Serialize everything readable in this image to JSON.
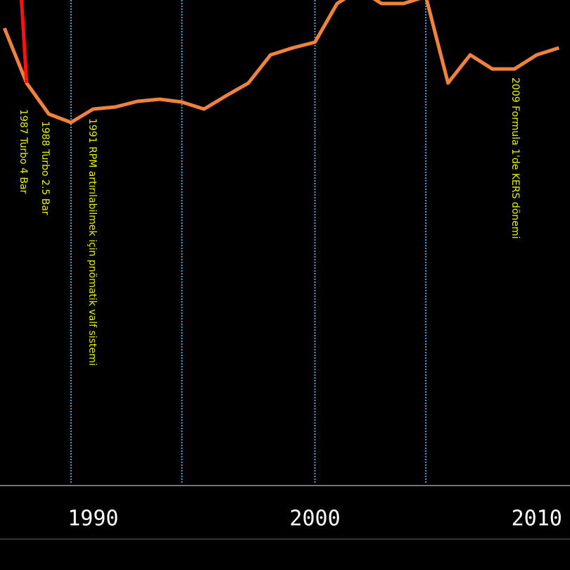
{
  "chart_data": {
    "type": "line",
    "x": [
      1986,
      1987,
      1988,
      1989,
      1990,
      1991,
      1992,
      1993,
      1994,
      1995,
      1996,
      1997,
      1998,
      1999,
      2000,
      2001,
      2002,
      2003,
      2004,
      2005,
      2006,
      2007,
      2008,
      2009,
      2010,
      2011
    ],
    "series": [
      {
        "color": "#f0823c",
        "values": [
          650,
          572,
          528,
          516,
          535,
          538,
          546,
          549,
          545,
          535,
          554,
          572,
          612,
          622,
          630,
          685,
          705,
          685,
          685,
          695,
          572,
          612,
          592,
          592,
          612,
          622
        ]
      },
      {
        "color": "#ff1010",
        "x": [
          1986.75,
          1987
        ],
        "values": [
          700,
          572
        ]
      }
    ],
    "reference_lines": [
      1989,
      1994,
      2000,
      2005
    ],
    "annotations": [
      "1987 Turbo 4 Bar",
      "1988 Turbo 2.5 Bar",
      "1991 RPM artırılabilmek için pnömatik valf sistemi",
      "2009 Formula 1'de KERS dönemi"
    ],
    "xlim": [
      1985.8,
      2011.5
    ],
    "ylim": [
      0,
      690
    ],
    "xticks": [
      1990,
      2000,
      2010
    ]
  }
}
